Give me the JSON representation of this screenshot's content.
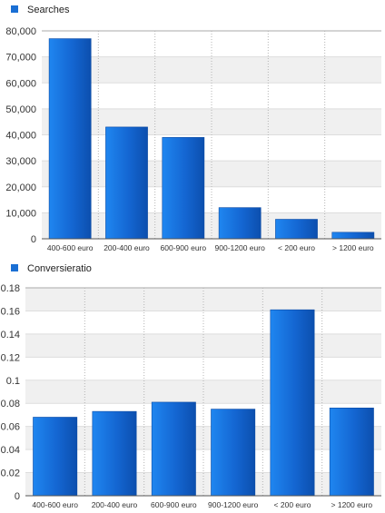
{
  "chart_data": [
    {
      "type": "bar",
      "legend_placement": "top-left",
      "grid": true,
      "categories": [
        "400-600 euro",
        "200-400 euro",
        "600-900 euro",
        "900-1200 euro",
        "< 200 euro",
        "> 1200 euro"
      ],
      "series": [
        {
          "name": "Searches",
          "values": [
            77000,
            43000,
            39000,
            12000,
            7500,
            2500
          ]
        }
      ],
      "ylim": [
        0,
        80000
      ],
      "yticks": [
        "0",
        "10,000",
        "20,000",
        "30,000",
        "40,000",
        "50,000",
        "60,000",
        "70,000",
        "80,000"
      ],
      "ytick_values": [
        0,
        10000,
        20000,
        30000,
        40000,
        50000,
        60000,
        70000,
        80000
      ],
      "color": "#1a6fd4"
    },
    {
      "type": "bar",
      "legend_placement": "top-left",
      "grid": true,
      "categories": [
        "400-600 euro",
        "200-400 euro",
        "600-900 euro",
        "900-1200 euro",
        "< 200 euro",
        "> 1200 euro"
      ],
      "series": [
        {
          "name": "Conversieratio",
          "values": [
            0.068,
            0.073,
            0.081,
            0.075,
            0.161,
            0.076
          ]
        }
      ],
      "ylim": [
        0,
        0.18
      ],
      "yticks": [
        "0",
        "0.02",
        "0.04",
        "0.06",
        "0.08",
        "0.1",
        "0.12",
        "0.14",
        "0.16",
        "0.18"
      ],
      "ytick_values": [
        0,
        0.02,
        0.04,
        0.06,
        0.08,
        0.1,
        0.12,
        0.14,
        0.16,
        0.18
      ],
      "color": "#1a6fd4"
    }
  ]
}
